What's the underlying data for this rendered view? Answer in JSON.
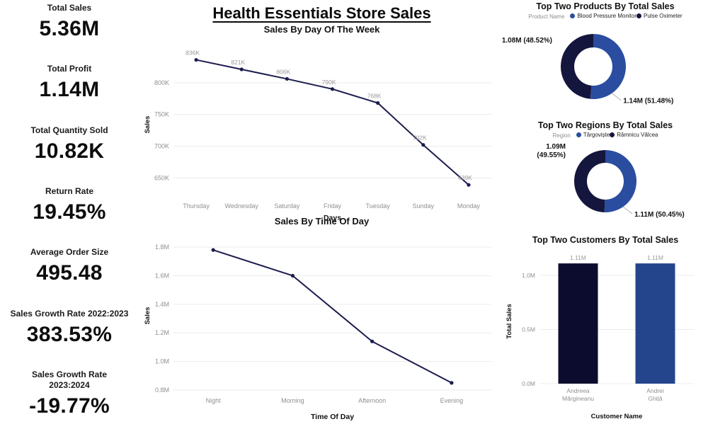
{
  "title": "Health Essentials Store Sales",
  "kpis": [
    {
      "label": "Total Sales",
      "value": "5.36M"
    },
    {
      "label": "Total Profit",
      "value": "1.14M"
    },
    {
      "label": "Total Quantity Sold",
      "value": "10.82K"
    },
    {
      "label": "Return Rate",
      "value": "19.45%"
    },
    {
      "label": "Average Order Size",
      "value": "495.48"
    },
    {
      "label": "Sales Growth Rate 2022:2023",
      "value": "383.53%"
    },
    {
      "label": "Sales Growth Rate\n2023:2024",
      "value": "-19.77%"
    }
  ],
  "colors": {
    "line": "#1b1c4e",
    "grid": "#ececec",
    "tick": "#8f8f8f",
    "leader": "#a0a0a0",
    "blue": "#2a4da0",
    "navy": "#15163d"
  },
  "chart_data": [
    {
      "type": "line",
      "title": "Sales By Day Of The Week",
      "xlabel": "Days",
      "ylabel": "Sales",
      "categories": [
        "Thursday",
        "Wednesday",
        "Saturday",
        "Friday",
        "Tuesday",
        "Sunday",
        "Monday"
      ],
      "values": [
        836,
        821,
        806,
        790,
        768,
        702,
        639
      ],
      "value_labels": [
        "836K",
        "821K",
        "806K",
        "790K",
        "768K",
        "702K",
        "639K"
      ],
      "yticks": [
        650,
        700,
        750,
        800
      ],
      "ytick_labels": [
        "650K",
        "700K",
        "750K",
        "800K"
      ],
      "ylim": [
        618,
        850
      ],
      "grid": true,
      "legend_position": "none"
    },
    {
      "type": "line",
      "title": "Sales By Time Of Day",
      "xlabel": "Time Of Day",
      "ylabel": "Sales",
      "categories": [
        "Night",
        "Morning",
        "Afternoon",
        "Evening"
      ],
      "values": [
        1.78,
        1.6,
        1.14,
        0.85
      ],
      "yticks": [
        0.8,
        1.0,
        1.2,
        1.4,
        1.6,
        1.8
      ],
      "ytick_labels": [
        "0.8M",
        "1.0M",
        "1.2M",
        "1.4M",
        "1.6M",
        "1.8M"
      ],
      "ylim": [
        0.78,
        1.86
      ],
      "grid": true,
      "legend_position": "none"
    },
    {
      "type": "pie",
      "subtype": "donut",
      "title": "Top Two Products By Total Sales",
      "legend_title": "Product Name",
      "legend_position": "top",
      "slices": [
        {
          "name": "Blood Pressure Monitor",
          "label": "1.14M (51.48%)",
          "value": 51.48,
          "color": "#2a4da0",
          "side": "right"
        },
        {
          "name": "Pulse Oximeter",
          "label": "1.08M (48.52%)",
          "value": 48.52,
          "color": "#15163d",
          "side": "left"
        }
      ]
    },
    {
      "type": "pie",
      "subtype": "donut",
      "title": "Top Two Regions By Total Sales",
      "legend_title": "Region",
      "legend_position": "top",
      "slices": [
        {
          "name": "Târgoviște",
          "label": "1.11M (50.45%)",
          "value": 50.45,
          "color": "#2a4da0",
          "side": "right"
        },
        {
          "name": "Râmnicu Vâlcea",
          "label": "1.09M\n(49.55%)",
          "value": 49.55,
          "color": "#15163d",
          "side": "left"
        }
      ]
    },
    {
      "type": "bar",
      "title": "Top Two Customers By Total Sales",
      "xlabel": "Customer Name",
      "ylabel": "Total Sales",
      "categories": [
        "Andreea\nMărgineanu",
        "Andrei\nGhiță"
      ],
      "values": [
        1.11,
        1.11
      ],
      "value_labels": [
        "1.11M",
        "1.11M"
      ],
      "yticks": [
        0.0,
        0.5,
        1.0
      ],
      "ytick_labels": [
        "0.0M",
        "0.5M",
        "1.0M"
      ],
      "ylim": [
        0,
        1.15
      ],
      "bar_colors": [
        "#0c0d2e",
        "#24458c"
      ],
      "grid": true,
      "legend_position": "none"
    }
  ]
}
